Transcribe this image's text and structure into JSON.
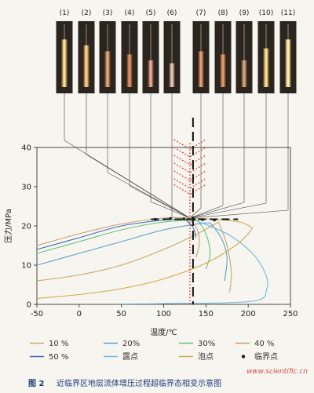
{
  "chart_data": {
    "type": "line",
    "xlabel": "温度/℃",
    "ylabel": "压力/MPa",
    "xlim": [
      -50,
      250
    ],
    "ylim": [
      0,
      40
    ],
    "xticks": [
      "-50",
      "0",
      "50",
      "100",
      "150",
      "200",
      "250"
    ],
    "yticks": [
      "0",
      "10",
      "20",
      "30",
      "40"
    ],
    "cell_labels": [
      "(1)",
      "(2)",
      "(3)",
      "(4)",
      "(5)",
      "(6)",
      "(7)",
      "(8)",
      "(9)",
      "(10)",
      "(11)"
    ],
    "cells": [
      {
        "label": "(1)",
        "tone": "#e8c070",
        "glow": "#fff6c0",
        "fill": 0.8
      },
      {
        "label": "(2)",
        "tone": "#e6b26a",
        "glow": "#ffe7a0",
        "fill": 0.7
      },
      {
        "label": "(3)",
        "tone": "#c98a5a",
        "glow": "#e9c8a0",
        "fill": 0.6
      },
      {
        "label": "(4)",
        "tone": "#c97a50",
        "glow": "#e6aa80",
        "fill": 0.55
      },
      {
        "label": "(5)",
        "tone": "#c9876a",
        "glow": "#ead0c0",
        "fill": 0.45
      },
      {
        "label": "(6)",
        "tone": "#c5a48c",
        "glow": "#ece2da",
        "fill": 0.4
      },
      {
        "label": "(7)",
        "tone": "#c9805a",
        "glow": "#eab490",
        "fill": 0.6
      },
      {
        "label": "(8)",
        "tone": "#c68252",
        "glow": "#e8ab80",
        "fill": 0.55
      },
      {
        "label": "(9)",
        "tone": "#b88a60",
        "glow": "#d8b890",
        "fill": 0.45
      },
      {
        "label": "(10)",
        "tone": "#e6c070",
        "glow": "#fff2b0",
        "fill": 0.65
      },
      {
        "label": "(11)",
        "tone": "#eed690",
        "glow": "#fffbe0",
        "fill": 0.8
      }
    ],
    "connectors": [
      {
        "cell": 1,
        "x": 131,
        "y": 22
      },
      {
        "cell": 2,
        "x": 131,
        "y": 22
      },
      {
        "cell": 3,
        "x": 131,
        "y": 22
      },
      {
        "cell": 4,
        "x": 131,
        "y": 22
      },
      {
        "cell": 5,
        "x": 131,
        "y": 22
      },
      {
        "cell": 6,
        "x": 131,
        "y": 22
      },
      {
        "cell": 7,
        "x": 131,
        "y": 22
      },
      {
        "cell": 8,
        "x": 131,
        "y": 22
      },
      {
        "cell": 9,
        "x": 131,
        "y": 22
      },
      {
        "cell": 10,
        "x": 131,
        "y": 22
      },
      {
        "cell": 11,
        "x": 131,
        "y": 22
      }
    ],
    "process": {
      "temperature": 131,
      "pressure_range": [
        0,
        36
      ],
      "marker_pressures": [
        22.5,
        24,
        26,
        28,
        30,
        32,
        34
      ]
    },
    "critical_line": {
      "pressure": 21.7,
      "x_range": [
        85,
        188
      ]
    },
    "series": [
      {
        "name": "10 %",
        "color": "#c9a86a",
        "bubble": [
          [
            -50,
            6
          ],
          [
            0,
            7.5
          ],
          [
            50,
            10
          ],
          [
            100,
            14
          ],
          [
            140,
            18
          ],
          [
            165,
            21
          ]
        ],
        "dew": [
          [
            165,
            21
          ],
          [
            175,
            15
          ],
          [
            180,
            8
          ],
          [
            178,
            3
          ]
        ]
      },
      {
        "name": "20%",
        "color": "#5aa0d0",
        "bubble": [
          [
            -50,
            10
          ],
          [
            0,
            13
          ],
          [
            50,
            16
          ],
          [
            100,
            19
          ],
          [
            140,
            20.5
          ],
          [
            155,
            20.8
          ]
        ],
        "dew": [
          [
            155,
            20.8
          ],
          [
            168,
            17
          ],
          [
            175,
            12
          ],
          [
            172,
            6
          ]
        ]
      },
      {
        "name": "30%",
        "color": "#6abf80",
        "bubble": [
          [
            -50,
            13
          ],
          [
            0,
            16
          ],
          [
            50,
            19
          ],
          [
            100,
            21
          ],
          [
            140,
            21.5
          ]
        ],
        "dew": [
          [
            140,
            21.5
          ],
          [
            150,
            18
          ],
          [
            155,
            13
          ],
          [
            150,
            9
          ]
        ]
      },
      {
        "name": "40 %",
        "color": "#c8a070",
        "bubble": [
          [
            -50,
            15
          ],
          [
            0,
            18
          ],
          [
            50,
            20.5
          ],
          [
            100,
            22
          ],
          [
            130,
            22
          ]
        ],
        "dew": [
          [
            130,
            22
          ],
          [
            140,
            19
          ],
          [
            142,
            15
          ],
          [
            138,
            12
          ]
        ]
      },
      {
        "name": "50 %",
        "color": "#3d6cb5",
        "bubble": [
          [
            -50,
            14
          ],
          [
            0,
            17
          ],
          [
            50,
            20
          ],
          [
            100,
            21.5
          ],
          [
            125,
            21.8
          ]
        ],
        "dew": [
          [
            125,
            21.8
          ],
          [
            135,
            19.5
          ],
          [
            138,
            17
          ]
        ]
      },
      {
        "name": "露点",
        "color": "#6fb8dc",
        "bubble": [
          [
            130,
            22
          ],
          [
            175,
            18
          ],
          [
            205,
            13
          ],
          [
            220,
            8
          ],
          [
            222,
            4
          ],
          [
            205,
            0.8
          ],
          [
            100,
            0.2
          ],
          [
            50,
            0.1
          ]
        ],
        "dew": []
      },
      {
        "name": "泡点",
        "color": "#d6a84c",
        "bubble": [
          [
            -50,
            1.5
          ],
          [
            0,
            2.5
          ],
          [
            50,
            4
          ],
          [
            100,
            6.5
          ],
          [
            150,
            10.5
          ],
          [
            185,
            15
          ],
          [
            200,
            18
          ],
          [
            205,
            19.5
          ]
        ],
        "dew": [
          [
            205,
            19.5
          ],
          [
            190,
            21
          ],
          [
            160,
            21.7
          ],
          [
            130,
            22
          ]
        ]
      }
    ],
    "critical_points": [
      [
        90,
        21.7
      ],
      [
        108,
        21.9
      ],
      [
        124,
        21.8
      ],
      [
        136,
        21.7
      ],
      [
        146,
        21.6
      ],
      [
        160,
        21.5
      ]
    ],
    "legend": [
      {
        "label": "10 %",
        "color": "#c9a86a",
        "kind": "line"
      },
      {
        "label": "20%",
        "color": "#5aa0d0",
        "kind": "line"
      },
      {
        "label": "30%",
        "color": "#6abf80",
        "kind": "line"
      },
      {
        "label": "40 %",
        "color": "#c8a070",
        "kind": "line"
      },
      {
        "label": "50 %",
        "color": "#3d6cb5",
        "kind": "line"
      },
      {
        "label": "露点",
        "color": "#6fb8dc",
        "kind": "line"
      },
      {
        "label": "泡点",
        "color": "#d6a84c",
        "kind": "line"
      },
      {
        "label": "临界点",
        "color": "#1b1b1b",
        "kind": "dot"
      }
    ],
    "caption_number": "图 2",
    "caption_text": "近临界区地层流体增压过程超临界态相变示意图",
    "watermark": "www.scientific.cn",
    "colors": {
      "process_marker": "#e0332a",
      "critical_line": "#111111",
      "axis": "#222222",
      "background": "#f7f5ef"
    }
  }
}
